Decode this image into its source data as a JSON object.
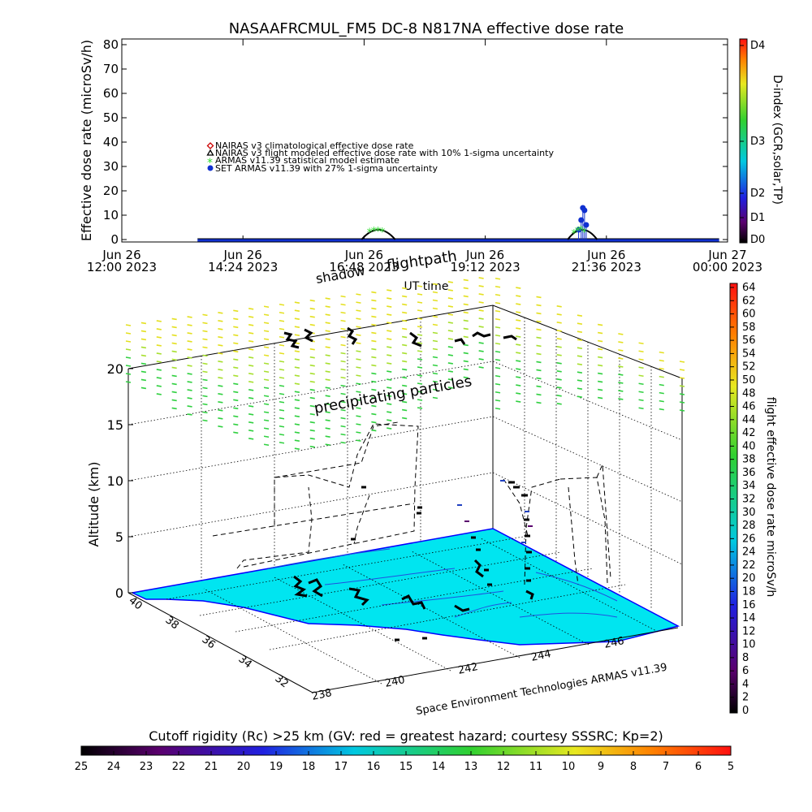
{
  "title": "NASAAFRCMUL_FM5 DC-8   N817NA effective dose rate",
  "chart_data": [
    {
      "type": "scatter",
      "title": "NASAAFRCMUL_FM5 DC-8   N817NA effective dose rate",
      "xlabel": "UT time",
      "ylabel": "Effective dose rate (microSv/h)",
      "ylim": [
        0,
        80
      ],
      "yticks": [
        0,
        10,
        20,
        30,
        40,
        50,
        60,
        70,
        80
      ],
      "xlim": [
        "2023-06-26T12:00",
        "2023-06-27T00:00"
      ],
      "xticks": [
        {
          "date": "2023-06-26T12:00",
          "line1": "Jun 26",
          "line2": "12:00  2023"
        },
        {
          "date": "2023-06-26T14:24",
          "line1": "Jun 26",
          "line2": "14:24  2023"
        },
        {
          "date": "2023-06-26T16:48",
          "line1": "Jun 26",
          "line2": "16:48  2023"
        },
        {
          "date": "2023-06-26T19:12",
          "line1": "Jun 26",
          "line2": "19:12  2023"
        },
        {
          "date": "2023-06-26T21:36",
          "line1": "Jun 26",
          "line2": "21:36  2023"
        },
        {
          "date": "2023-06-27T00:00",
          "line1": "Jun 27",
          "line2": "00:00  2023"
        }
      ],
      "legend": [
        {
          "label": "NAIRAS v3 climatological effective dose rate",
          "color": "#cc0000",
          "marker": "diamond"
        },
        {
          "label": "NAIRAS v3 flight modeled effective dose rate with 10% 1-sigma uncertainty",
          "color": "#000000",
          "marker": "triangle"
        },
        {
          "label": "ARMAS v11.39 statistical model estimate",
          "color": "#33dd33",
          "marker": "asterisk"
        },
        {
          "label": "SET ARMAS v11.39 with 27% 1-sigma uncertainty",
          "color": "#1030d0",
          "marker": "circle"
        }
      ],
      "legend_placement": "upper-left",
      "series": [
        {
          "name": "SET ARMAS v11.39 with 27% 1-sigma uncertainty",
          "x": [
            "2023-06-26T21:03",
            "2023-06-26T21:06",
            "2023-06-26T21:08",
            "2023-06-26T21:10",
            "2023-06-26T21:12"
          ],
          "y": [
            4,
            8,
            13,
            12,
            6
          ]
        },
        {
          "name": "ARMAS v11.39 statistical model estimate",
          "x": [
            "2023-06-26T16:55",
            "2023-06-26T17:00",
            "2023-06-26T17:05",
            "2023-06-26T17:10",
            "2023-06-26T20:58",
            "2023-06-26T21:02",
            "2023-06-26T21:06",
            "2023-06-26T21:10"
          ],
          "y": [
            3,
            3.5,
            3.5,
            3.2,
            2.5,
            3.5,
            4,
            3
          ]
        }
      ],
      "baseline_range": [
        "2023-06-26T13:30",
        "2023-06-26T23:50"
      ]
    },
    {
      "type": "scatter",
      "xlabel": "",
      "ylabel": "Altitude (km)",
      "zlim": [
        0,
        20
      ],
      "zticks": [
        0,
        5,
        10,
        15,
        20
      ],
      "lat_ticks": [
        40,
        38,
        36,
        34,
        32
      ],
      "lon_ticks": [
        238,
        240,
        242,
        244,
        246
      ],
      "annotations": [
        "shadow",
        "flightpath",
        "precipitating particles"
      ],
      "credit": "Space Environment Technologies ARMAS v11.39"
    }
  ],
  "right_colorbar_top": {
    "label": "D-index (GCR,solar,TP)",
    "ticks": [
      "D4",
      "D3",
      "D2",
      "D1",
      "D0"
    ]
  },
  "right_colorbar_bottom": {
    "label": "flight effective dose rate microSv/h",
    "ticks": [
      64,
      62,
      60,
      58,
      56,
      54,
      52,
      50,
      48,
      46,
      44,
      42,
      40,
      38,
      36,
      34,
      32,
      30,
      28,
      26,
      24,
      22,
      20,
      18,
      16,
      14,
      12,
      10,
      8,
      6,
      4,
      2,
      0
    ]
  },
  "bottom_colorbar": {
    "label": "Cutoff rigidity (Rc) >25 km (GV: red = greatest hazard; courtesy SSSRC; Kp=2)",
    "ticks": [
      25,
      24,
      23,
      22,
      21,
      20,
      19,
      18,
      17,
      16,
      15,
      14,
      13,
      12,
      11,
      10,
      9,
      8,
      7,
      6,
      5
    ]
  }
}
